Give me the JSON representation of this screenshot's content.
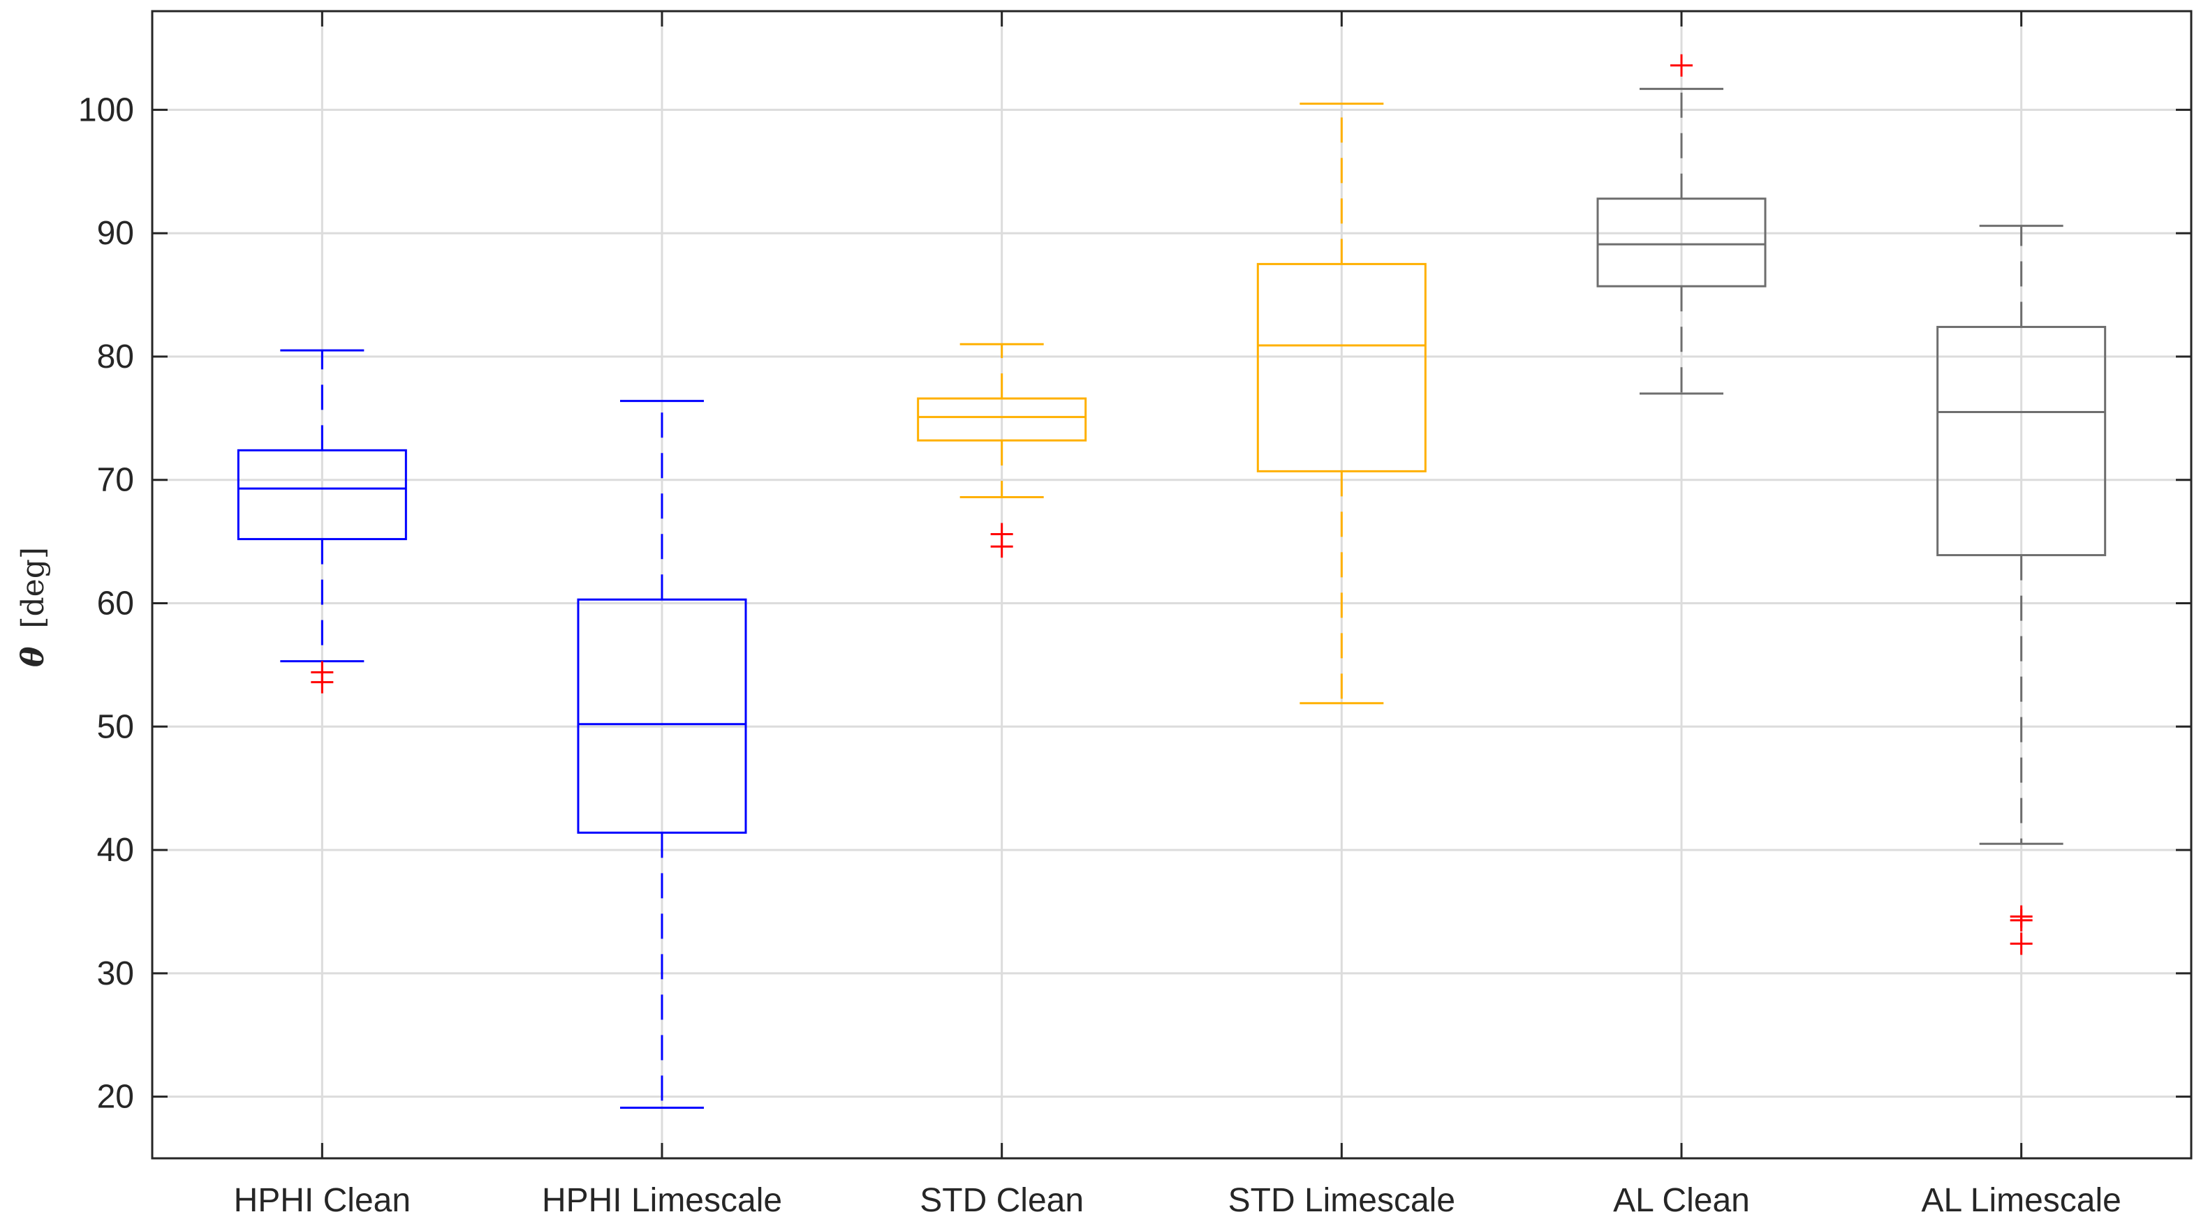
{
  "chart_data": {
    "type": "boxplot",
    "title": "",
    "xlabel": "",
    "ylabel": "θ [deg]",
    "ylabel_symbol": "θ",
    "ylabel_unit": "[deg]",
    "ylim": [
      15,
      108
    ],
    "yticks": [
      "20",
      "30",
      "40",
      "50",
      "60",
      "70",
      "80",
      "90",
      "100"
    ],
    "grid": true,
    "categories": [
      "HPHI Clean",
      "HPHI Limescale",
      "STD Clean",
      "STD Limescale",
      "AL Clean",
      "AL Limescale"
    ],
    "boxes": [
      {
        "name": "HPHI Clean",
        "color": "#0000ff",
        "whisker_low": 55.3,
        "q1": 65.2,
        "median": 69.3,
        "q3": 72.4,
        "whisker_high": 80.5,
        "outliers": [
          53.6,
          54.4
        ]
      },
      {
        "name": "HPHI Limescale",
        "color": "#0000ff",
        "whisker_low": 19.1,
        "q1": 41.4,
        "median": 50.2,
        "q3": 60.3,
        "whisker_high": 76.4,
        "outliers": []
      },
      {
        "name": "STD Clean",
        "color": "#ffb000",
        "whisker_low": 68.6,
        "q1": 73.2,
        "median": 75.1,
        "q3": 76.6,
        "whisker_high": 81.0,
        "outliers": [
          64.6,
          65.6
        ]
      },
      {
        "name": "STD Limescale",
        "color": "#ffb000",
        "whisker_low": 51.9,
        "q1": 70.7,
        "median": 80.9,
        "q3": 87.5,
        "whisker_high": 100.5,
        "outliers": []
      },
      {
        "name": "AL Clean",
        "color": "#6e6e6e",
        "whisker_low": 77.0,
        "q1": 85.7,
        "median": 89.1,
        "q3": 92.8,
        "whisker_high": 101.7,
        "outliers": [
          103.6
        ]
      },
      {
        "name": "AL Limescale",
        "color": "#6e6e6e",
        "whisker_low": 40.5,
        "q1": 63.9,
        "median": 75.5,
        "q3": 82.4,
        "whisker_high": 90.6,
        "outliers": [
          32.4,
          34.3,
          34.6
        ]
      }
    ],
    "outlier_color": "#ff0000",
    "outlier_marker": "+"
  }
}
